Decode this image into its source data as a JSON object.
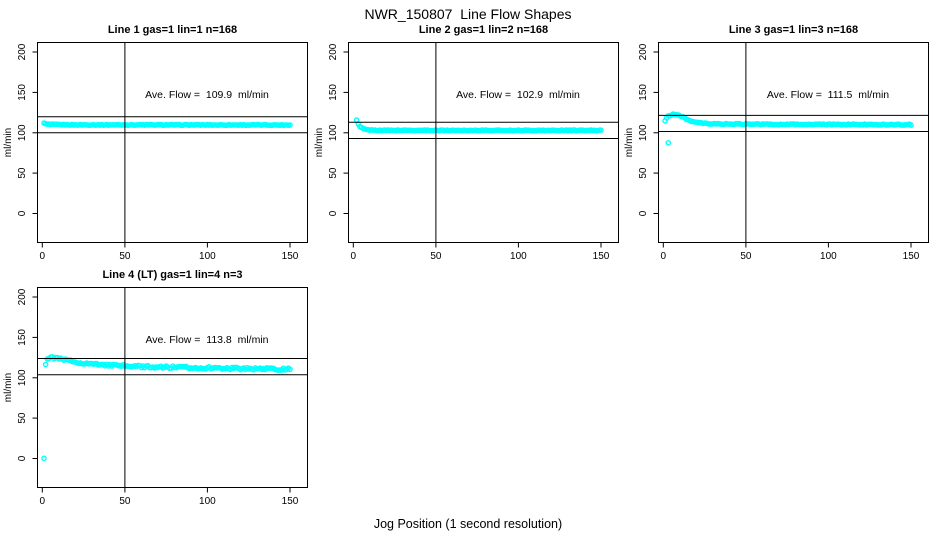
{
  "figure": {
    "title": "NWR_150807  Line Flow Shapes",
    "xlabel": "Jog Position (1 second resolution)",
    "point_color": "#00ffff",
    "line_color": "#000000",
    "background_color": "#ffffff"
  },
  "chart_data": {
    "type": "scatter",
    "marker": "open-circle",
    "x_ticks": [
      0,
      50,
      100,
      150
    ],
    "y_ticks": [
      0,
      50,
      100,
      150,
      200
    ],
    "xlim": [
      -3,
      161
    ],
    "ylim": [
      -37,
      212
    ],
    "grid": false,
    "vline_x": 50,
    "reference_band": "ave_flow plus/minus 10 ml/min",
    "panels": [
      {
        "title": "Line 1 gas=1 lin=1 n=168",
        "ylabel": "ml/min",
        "ave_flow": 109.9,
        "annotation": "Ave. Flow =  109.9  ml/min",
        "hlines": [
          119.9,
          99.9
        ],
        "vline": 50,
        "x_start": 1,
        "x_end": 150,
        "noise": 0.5,
        "points_profile": [
          [
            1,
            112.5
          ],
          [
            2,
            110.8
          ],
          [
            5,
            110.2
          ],
          [
            20,
            109.8
          ],
          [
            150,
            109.6
          ]
        ],
        "outliers": []
      },
      {
        "title": "Line 2 gas=1 lin=2 n=168",
        "ylabel": "ml/min",
        "ave_flow": 102.9,
        "annotation": "Ave. Flow =  102.9  ml/min",
        "hlines": [
          112.9,
          92.9
        ],
        "vline": 50,
        "x_start": 2,
        "x_end": 150,
        "noise": 0.4,
        "points_profile": [
          [
            2,
            115.5
          ],
          [
            3,
            110.5
          ],
          [
            4,
            107.5
          ],
          [
            6,
            105
          ],
          [
            9,
            103.5
          ],
          [
            15,
            103
          ],
          [
            150,
            102.9
          ]
        ],
        "outliers": []
      },
      {
        "title": "Line 3 gas=1 lin=3 n=168",
        "ylabel": "ml/min",
        "ave_flow": 111.5,
        "annotation": "Ave. Flow =  111.5  ml/min",
        "hlines": [
          121.5,
          101.5
        ],
        "vline": 50,
        "x_start": 1,
        "x_end": 150,
        "noise": 0.6,
        "points_profile": [
          [
            1,
            115
          ],
          [
            3,
            121
          ],
          [
            6,
            123
          ],
          [
            9,
            122
          ],
          [
            12,
            119
          ],
          [
            16,
            115
          ],
          [
            20,
            112.5
          ],
          [
            28,
            111
          ],
          [
            60,
            110.5
          ],
          [
            150,
            110
          ]
        ],
        "outliers": [
          [
            3,
            87.5
          ]
        ]
      },
      {
        "title": "Line 4 (LT) gas=1 lin=4 n=3",
        "ylabel": "ml/min",
        "ave_flow": 113.8,
        "annotation": "Ave. Flow =  113.8  ml/min",
        "hlines": [
          123.8,
          103.8
        ],
        "vline": 50,
        "x_start": 2,
        "x_end": 150,
        "noise": 1.4,
        "points_profile": [
          [
            2,
            117.5
          ],
          [
            3,
            123.5
          ],
          [
            5,
            125
          ],
          [
            9,
            124
          ],
          [
            14,
            122
          ],
          [
            20,
            119.5
          ],
          [
            30,
            117
          ],
          [
            45,
            115
          ],
          [
            65,
            113.5
          ],
          [
            90,
            112.5
          ],
          [
            120,
            111.5
          ],
          [
            150,
            110.5
          ]
        ],
        "outliers": [
          [
            1,
            0.3
          ]
        ]
      }
    ]
  }
}
